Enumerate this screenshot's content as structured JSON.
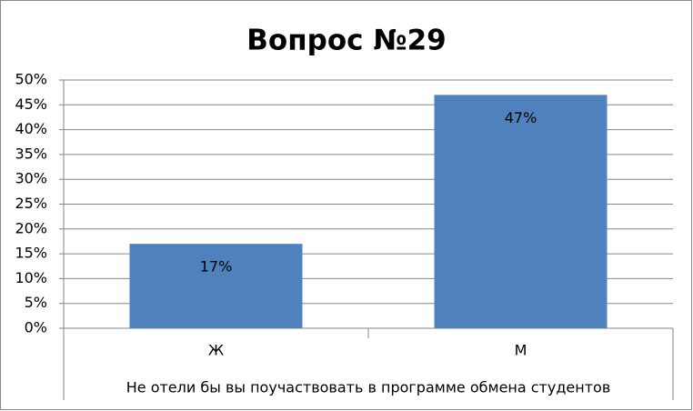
{
  "chart_data": {
    "type": "bar",
    "title": "Вопрос №29",
    "x_label": "Не отели бы вы поучаствовать в программе обмена студентов",
    "categories": [
      "Ж",
      "М"
    ],
    "values": [
      17,
      47
    ],
    "value_labels": [
      "17%",
      "47%"
    ],
    "color": "#4f81bd",
    "ylim": [
      0,
      50
    ],
    "yticks": [
      {
        "value": 0,
        "label": "0%"
      },
      {
        "value": 5,
        "label": "5%"
      },
      {
        "value": 10,
        "label": "10%"
      },
      {
        "value": 15,
        "label": "15%"
      },
      {
        "value": 20,
        "label": "20%"
      },
      {
        "value": 25,
        "label": "25%"
      },
      {
        "value": 30,
        "label": "30%"
      },
      {
        "value": 35,
        "label": "35%"
      },
      {
        "value": 40,
        "label": "40%"
      },
      {
        "value": 45,
        "label": "45%"
      },
      {
        "value": 50,
        "label": "50%"
      }
    ],
    "grid": true
  }
}
